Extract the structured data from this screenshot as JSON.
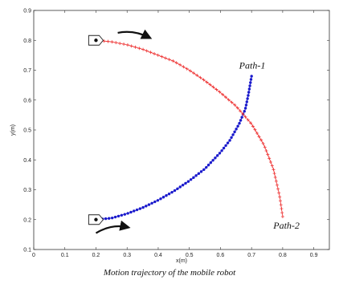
{
  "chart_data": {
    "type": "scatter",
    "title": "",
    "caption": "Motion trajectory of the mobile robot",
    "xlabel": "x(m)",
    "ylabel": "y(m)",
    "xlim": [
      0,
      0.95
    ],
    "ylim": [
      0.1,
      0.9
    ],
    "xticks": [
      "0",
      "0.1",
      "0.2",
      "0.3",
      "0.4",
      "0.5",
      "0.6",
      "0.7",
      "0.8",
      "0.9"
    ],
    "yticks": [
      "0.1",
      "0.2",
      "0.3",
      "0.4",
      "0.5",
      "0.6",
      "0.7",
      "0.8",
      "0.9"
    ],
    "grid": false,
    "legend": "none",
    "series": [
      {
        "color": "#1a1acc",
        "marker": "dot",
        "x": [
          0.2,
          0.25,
          0.3,
          0.35,
          0.4,
          0.45,
          0.5,
          0.55,
          0.6,
          0.63,
          0.66,
          0.68,
          0.69,
          0.7
        ],
        "y": [
          0.2,
          0.205,
          0.22,
          0.24,
          0.265,
          0.295,
          0.33,
          0.37,
          0.425,
          0.465,
          0.52,
          0.57,
          0.62,
          0.68
        ]
      },
      {
        "color": "#ee3333",
        "marker": "plus",
        "x": [
          0.2,
          0.25,
          0.3,
          0.35,
          0.4,
          0.45,
          0.5,
          0.55,
          0.6,
          0.65,
          0.7,
          0.74,
          0.77,
          0.79,
          0.8
        ],
        "y": [
          0.8,
          0.795,
          0.785,
          0.77,
          0.75,
          0.73,
          0.7,
          0.665,
          0.625,
          0.58,
          0.52,
          0.45,
          0.37,
          0.28,
          0.21
        ]
      }
    ],
    "annotations": [
      {
        "text": "Path-1",
        "x": 0.66,
        "y": 0.705
      },
      {
        "text": "Path-2",
        "x": 0.77,
        "y": 0.17
      }
    ],
    "robots": [
      {
        "x": 0.2,
        "y": 0.8
      },
      {
        "x": 0.2,
        "y": 0.2
      }
    ],
    "arrows": [
      {
        "from": [
          0.27,
          0.825
        ],
        "to": [
          0.37,
          0.81
        ]
      },
      {
        "from": [
          0.2,
          0.155
        ],
        "to": [
          0.3,
          0.175
        ]
      }
    ]
  }
}
